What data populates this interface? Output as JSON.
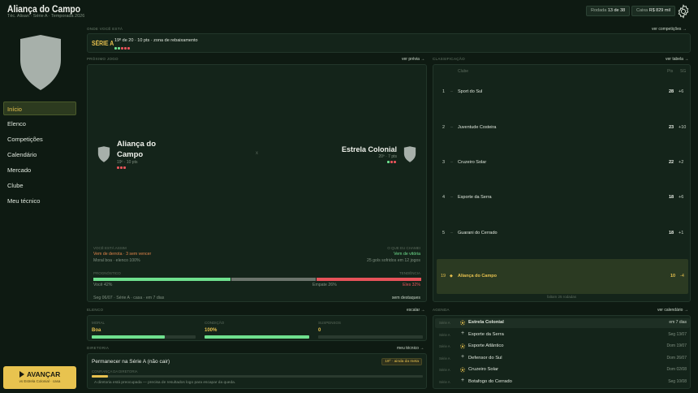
{
  "header": {
    "club_name": "Aliança do Campo",
    "subtitle": "Téc. Alisan · Série A · Temporada 2026",
    "round_label": "Rodada",
    "round_value": "13 de 38",
    "cash_label": "Caixa",
    "cash_value": "R$ 829 mil"
  },
  "sidebar": {
    "items": [
      {
        "label": "Início"
      },
      {
        "label": "Elenco"
      },
      {
        "label": "Competições"
      },
      {
        "label": "Calendário"
      },
      {
        "label": "Mercado"
      },
      {
        "label": "Clube"
      },
      {
        "label": "Meu técnico"
      }
    ],
    "advance": {
      "label": "AVANÇAR",
      "sub": "vs Estrela Colonial · casa"
    }
  },
  "competition": {
    "section_label": "ONDE VOCÊ ESTÁ",
    "link": "ver competições →",
    "badge": "SÉRIE A",
    "position_text": "19º de 20 · 10 pts · zona de rebaixamento",
    "form": [
      "#6fe08e",
      "#6fe08e",
      "#e6535a",
      "#e6535a",
      "#e6535a"
    ]
  },
  "next_match": {
    "section_label": "PRÓXIMO JOGO",
    "link": "ver prévia →",
    "home": {
      "name": "Aliança do Campo",
      "info": "19º · 10 pts",
      "form": [
        "#e6535a",
        "#e6535a",
        "#e6535a"
      ]
    },
    "vs": "x",
    "away": {
      "name": "Estrela Colonial",
      "info": "20º · 7 pts",
      "form": [
        "#6fe08e",
        "#e6535a",
        "#e6535a"
      ]
    },
    "you_label": "VOCÊ ESTÁ ASSIM",
    "you_l1": "Vem de derrota · 3 sem vencer",
    "you_l2": "Moral boa · elenco 100%",
    "rival_label": "O QUE EU CHAMEI",
    "rival_l1": "Vem de vitória",
    "rival_l2": "25 gols sofridos em 12 jogos",
    "prog_label": "PROGNÓSTICO",
    "prog_right_label": "TENDÊNCIA",
    "prob_you": "Você 42%",
    "prob_draw": "Empate 26%",
    "prob_away": "Eles 32%",
    "prob_you_value": 42,
    "prob_draw_value": 26,
    "prob_away_value": 32,
    "date_line": "Seg 06/07 · Série A · casa · em 7 dias",
    "highlights": "sem destaques"
  },
  "standings": {
    "section_label": "CLASSIFICAÇÃO",
    "link": "ver tabela →",
    "col_club": "Clube",
    "col_pts": "Pts",
    "col_sg": "SG",
    "rows": [
      {
        "pos": "1",
        "name": "Sport do Sul",
        "pts": "28",
        "sg": "+6"
      },
      {
        "pos": "2",
        "name": "Juventude Costeira",
        "pts": "23",
        "sg": "+10"
      },
      {
        "pos": "3",
        "name": "Cruzeiro Solar",
        "pts": "22",
        "sg": "+2"
      },
      {
        "pos": "4",
        "name": "Esporte da Serra",
        "pts": "18",
        "sg": "+6"
      },
      {
        "pos": "5",
        "name": "Guarani do Cerrado",
        "pts": "18",
        "sg": "+1"
      }
    ],
    "own_row": {
      "pos": "19",
      "name": "Aliança do Campo",
      "pts": "10",
      "sg": "-4"
    },
    "footer": "faltam 25 rodadas"
  },
  "squad": {
    "section_label": "ELENCO",
    "link": "escalar →",
    "moral_label": "MORAL",
    "moral_value": "Boa",
    "moral_level": 70,
    "fitness_label": "CONDIÇÃO",
    "fitness_value": "100%",
    "fitness_level": 100,
    "suspended_label": "SUSPENSOS",
    "suspended_value": "0",
    "suspended_level": 0
  },
  "objectives": {
    "section_label": "DIRETORIA",
    "link": "meu técnico →",
    "goal": "Permanecer na Série A (não cair)",
    "goal_badge": "19º · ainda da meta",
    "trust_label": "CONFIANÇA DA DIRETORIA",
    "trust_level": 5,
    "note": "A diretoria está preocupada — precisa de resultados logo para escapar da queda."
  },
  "agenda": {
    "section_label": "AGENDA",
    "link": "ver calendário →",
    "items": [
      {
        "comp": "Série A",
        "icon": "ball",
        "name": "Estrela Colonial",
        "date": "em 7 dias",
        "highlight": true
      },
      {
        "comp": "Série A",
        "icon": "plus",
        "name": "Esporte da Serra",
        "date": "Seg 13/07",
        "highlight": false
      },
      {
        "comp": "Série A",
        "icon": "ball",
        "name": "Esporte Atlântico",
        "date": "Dom 19/07",
        "highlight": false
      },
      {
        "comp": "Série A",
        "icon": "plus",
        "name": "Defensor do Sul",
        "date": "Dom 26/07",
        "highlight": false
      },
      {
        "comp": "Série A",
        "icon": "ball",
        "name": "Cruzeiro Solar",
        "date": "Dom 02/08",
        "highlight": false
      },
      {
        "comp": "Série A",
        "icon": "plus",
        "name": "Botafogo do Cerrado",
        "date": "Seg 10/08",
        "highlight": false
      }
    ]
  },
  "colors": {
    "background": "#0e1a12",
    "accent": "#e6c04e",
    "win": "#6fe08e",
    "loss": "#e6535a"
  }
}
